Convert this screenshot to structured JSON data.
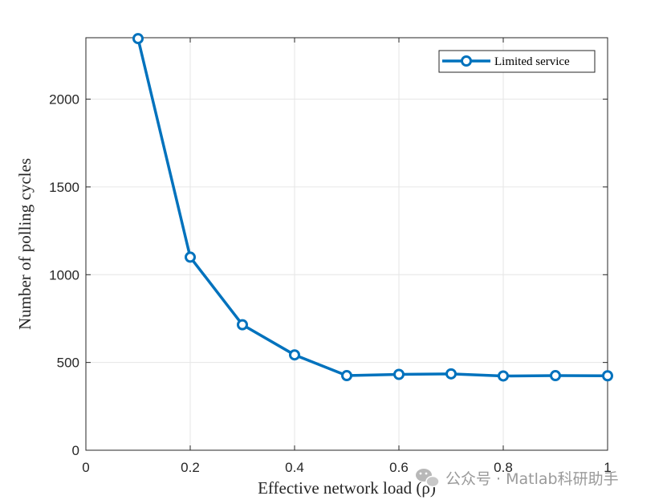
{
  "chart_data": {
    "type": "line",
    "title": "",
    "xlabel": "Effective network load (ρ)",
    "ylabel": "Number of polling cycles",
    "xlim": [
      0,
      1
    ],
    "ylim": [
      0,
      2350
    ],
    "xticks": [
      0,
      0.2,
      0.4,
      0.6,
      0.8,
      1
    ],
    "xtick_labels": [
      "0",
      "0.2",
      "0.4",
      "0.6",
      "0.8",
      "1"
    ],
    "yticks": [
      0,
      500,
      1000,
      1500,
      2000
    ],
    "ytick_labels": [
      "0",
      "500",
      "1000",
      "1500",
      "2000"
    ],
    "grid": true,
    "legend_position": "top-right",
    "series": [
      {
        "name": "Limited service",
        "color": "#0072BD",
        "marker": "circle",
        "x": [
          0.1,
          0.2,
          0.3,
          0.4,
          0.5,
          0.6,
          0.7,
          0.8,
          0.9,
          1.0
        ],
        "values": [
          2345,
          1100,
          715,
          543,
          425,
          432,
          435,
          423,
          425,
          424
        ]
      }
    ]
  },
  "watermark": {
    "icon": "wechat-icon",
    "text": "公众号 · Matlab科研助手"
  }
}
